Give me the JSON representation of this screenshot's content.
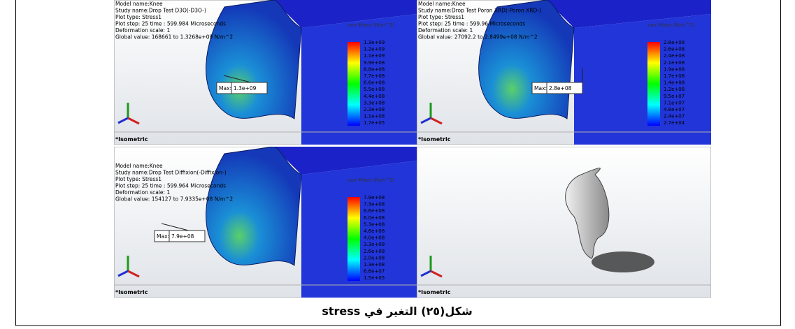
{
  "panels": [
    {
      "info": [
        "Model name:Knee",
        "Study name:Drop Test D3O(-D3O-)",
        "Plot type: Stress1",
        "Plot step: 25   time : 599.984 Microseconds",
        "Deformation scale: 1",
        "Global value: 168661 to 1.3268e+09 N/m^2"
      ],
      "legend_title": "von Mises (N/m^2)",
      "legend": [
        "1.3e+09",
        "1.2e+09",
        "1.1e+09",
        "9.9e+08",
        "8.8e+08",
        "7.7e+08",
        "6.6e+08",
        "5.5e+08",
        "4.4e+08",
        "3.3e+08",
        "2.2e+08",
        "1.1e+08",
        "1.7e+05"
      ],
      "max_label": "Max:",
      "max_value": "1.3e+09",
      "view": "*Isometric"
    },
    {
      "info": [
        "Model name:Knee",
        "Study name:Drop Test Poron XRD(-Poron XRD-)",
        "Plot type: Stress1",
        "Plot step: 25   time : 599.96 Microseconds",
        "Deformation scale: 1",
        "Global value: 27092.2 to 2.8499e+08 N/m^2"
      ],
      "legend_title": "von Mises (N/m^2)",
      "legend": [
        "2.8e+08",
        "2.6e+08",
        "2.4e+08",
        "2.1e+08",
        "1.9e+08",
        "1.7e+08",
        "1.4e+08",
        "1.2e+08",
        "9.5e+07",
        "7.1e+07",
        "4.8e+07",
        "2.4e+07",
        "2.7e+04"
      ],
      "max_label": "Max:",
      "max_value": "2.8e+08",
      "view": "*Isometric"
    },
    {
      "info": [
        "Model name:Knee",
        "Study name:Drop Test Diffixion(-Diffixion-)",
        "Plot type: Stress1",
        "Plot step: 25   time : 599.964 Microseconds",
        "Deformation scale: 1",
        "Global value: 154127 to 7.9335e+08 N/m^2"
      ],
      "legend_title": "von Mises (N/m^2)",
      "legend": [
        "7.9e+08",
        "7.3e+08",
        "6.6e+08",
        "6.0e+08",
        "5.3e+08",
        "4.6e+08",
        "4.0e+08",
        "3.3e+08",
        "2.6e+08",
        "2.0e+08",
        "1.3e+08",
        "6.6e+07",
        "1.5e+05"
      ],
      "max_label": "Max:",
      "max_value": "7.9e+08",
      "view": "*Isometric"
    },
    {
      "view": "*Isometric"
    }
  ],
  "caption": "شكل(٢٥) التغير في stress"
}
